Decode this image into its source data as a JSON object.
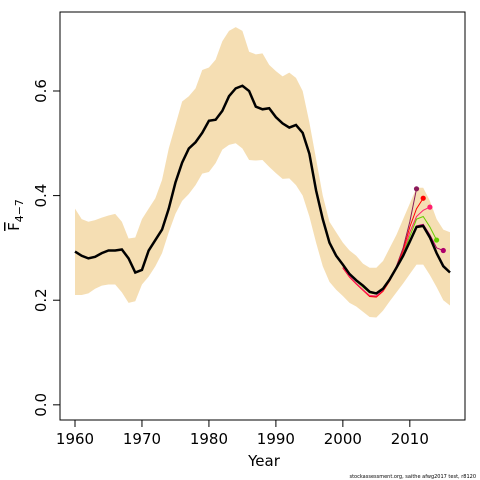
{
  "chart_data": {
    "type": "line",
    "xlabel": "Year",
    "ylabel": "F",
    "ylabel_sub": "4−7",
    "footnote": "stockassessment.org, saithe afwg2017 test, r8120",
    "xlim": [
      1957.76,
      2018.24
    ],
    "ylim": [
      -0.029,
      0.751
    ],
    "xticks": [
      1960,
      1970,
      1980,
      1990,
      2000,
      2010
    ],
    "yticks": [
      {
        "value": 0,
        "label": "0.0"
      },
      0.2,
      0.4,
      0.6
    ],
    "x": [
      1960,
      1961,
      1962,
      1963,
      1964,
      1965,
      1966,
      1967,
      1968,
      1969,
      1970,
      1971,
      1972,
      1973,
      1974,
      1975,
      1976,
      1977,
      1978,
      1979,
      1980,
      1981,
      1982,
      1983,
      1984,
      1985,
      1986,
      1987,
      1988,
      1989,
      1990,
      1991,
      1992,
      1993,
      1994,
      1995,
      1996,
      1997,
      1998,
      1999,
      2000,
      2001,
      2002,
      2003,
      2004,
      2005,
      2006,
      2007,
      2008,
      2009,
      2010,
      2011,
      2012,
      2013,
      2014,
      2015,
      2016
    ],
    "band": {
      "color": "#f5deb3",
      "upper": [
        0.375,
        0.355,
        0.35,
        0.353,
        0.358,
        0.362,
        0.365,
        0.35,
        0.318,
        0.32,
        0.355,
        0.375,
        0.395,
        0.43,
        0.49,
        0.535,
        0.58,
        0.59,
        0.605,
        0.64,
        0.645,
        0.66,
        0.695,
        0.715,
        0.722,
        0.715,
        0.675,
        0.67,
        0.672,
        0.65,
        0.638,
        0.628,
        0.635,
        0.625,
        0.6,
        0.54,
        0.47,
        0.4,
        0.35,
        0.33,
        0.31,
        0.295,
        0.285,
        0.27,
        0.262,
        0.262,
        0.275,
        0.3,
        0.325,
        0.355,
        0.385,
        0.415,
        0.415,
        0.39,
        0.355,
        0.335,
        0.33
      ],
      "lower": [
        0.21,
        0.21,
        0.213,
        0.222,
        0.228,
        0.23,
        0.23,
        0.215,
        0.195,
        0.198,
        0.23,
        0.245,
        0.265,
        0.29,
        0.33,
        0.365,
        0.39,
        0.403,
        0.42,
        0.442,
        0.445,
        0.462,
        0.488,
        0.497,
        0.5,
        0.49,
        0.468,
        0.467,
        0.468,
        0.455,
        0.443,
        0.432,
        0.433,
        0.42,
        0.4,
        0.36,
        0.31,
        0.265,
        0.235,
        0.22,
        0.208,
        0.195,
        0.188,
        0.178,
        0.168,
        0.167,
        0.18,
        0.198,
        0.215,
        0.232,
        0.25,
        0.268,
        0.268,
        0.248,
        0.225,
        0.2,
        0.19
      ]
    },
    "main": {
      "color": "#000000",
      "values": [
        0.293,
        0.285,
        0.28,
        0.283,
        0.29,
        0.295,
        0.295,
        0.297,
        0.28,
        0.253,
        0.258,
        0.295,
        0.315,
        0.335,
        0.375,
        0.425,
        0.463,
        0.49,
        0.502,
        0.52,
        0.543,
        0.545,
        0.562,
        0.59,
        0.605,
        0.61,
        0.6,
        0.57,
        0.565,
        0.567,
        0.55,
        0.538,
        0.53,
        0.535,
        0.52,
        0.48,
        0.41,
        0.355,
        0.31,
        0.285,
        0.268,
        0.25,
        0.238,
        0.228,
        0.216,
        0.213,
        0.222,
        0.24,
        0.262,
        0.285,
        0.312,
        0.34,
        0.342,
        0.32,
        0.29,
        0.265,
        0.253
      ]
    },
    "series": [
      {
        "color": "#8b1a5a",
        "x": [
          2000,
          2001,
          2002,
          2003,
          2004,
          2005,
          2006,
          2007,
          2008,
          2009,
          2010,
          2011
        ],
        "values": [
          0.262,
          0.245,
          0.232,
          0.22,
          0.208,
          0.207,
          0.218,
          0.238,
          0.265,
          0.3,
          0.35,
          0.413
        ]
      },
      {
        "color": "#ff0000",
        "x": [
          2000,
          2001,
          2002,
          2003,
          2004,
          2005,
          2006,
          2007,
          2008,
          2009,
          2010,
          2011,
          2012
        ],
        "values": [
          0.262,
          0.244,
          0.231,
          0.219,
          0.207,
          0.206,
          0.217,
          0.237,
          0.263,
          0.295,
          0.34,
          0.375,
          0.395
        ]
      },
      {
        "color": "#ff1f6f",
        "x": [
          2000,
          2001,
          2002,
          2003,
          2004,
          2005,
          2006,
          2007,
          2008,
          2009,
          2010,
          2011,
          2012,
          2013
        ],
        "values": [
          0.263,
          0.245,
          0.232,
          0.22,
          0.209,
          0.208,
          0.219,
          0.239,
          0.262,
          0.29,
          0.33,
          0.36,
          0.372,
          0.378
        ]
      },
      {
        "color": "#66cc00",
        "x": [
          2000,
          2001,
          2002,
          2003,
          2004,
          2005,
          2006,
          2007,
          2008,
          2009,
          2010,
          2011,
          2012,
          2013,
          2014
        ],
        "values": [
          0.266,
          0.249,
          0.236,
          0.225,
          0.214,
          0.212,
          0.221,
          0.24,
          0.263,
          0.288,
          0.322,
          0.355,
          0.36,
          0.34,
          0.315
        ]
      },
      {
        "color": "#b0006b",
        "x": [
          2000,
          2001,
          2002,
          2003,
          2004,
          2005,
          2006,
          2007,
          2008,
          2009,
          2010,
          2011,
          2012,
          2013,
          2014,
          2015
        ],
        "values": [
          0.267,
          0.25,
          0.237,
          0.227,
          0.216,
          0.213,
          0.222,
          0.24,
          0.262,
          0.286,
          0.315,
          0.342,
          0.345,
          0.325,
          0.3,
          0.295
        ]
      }
    ]
  }
}
